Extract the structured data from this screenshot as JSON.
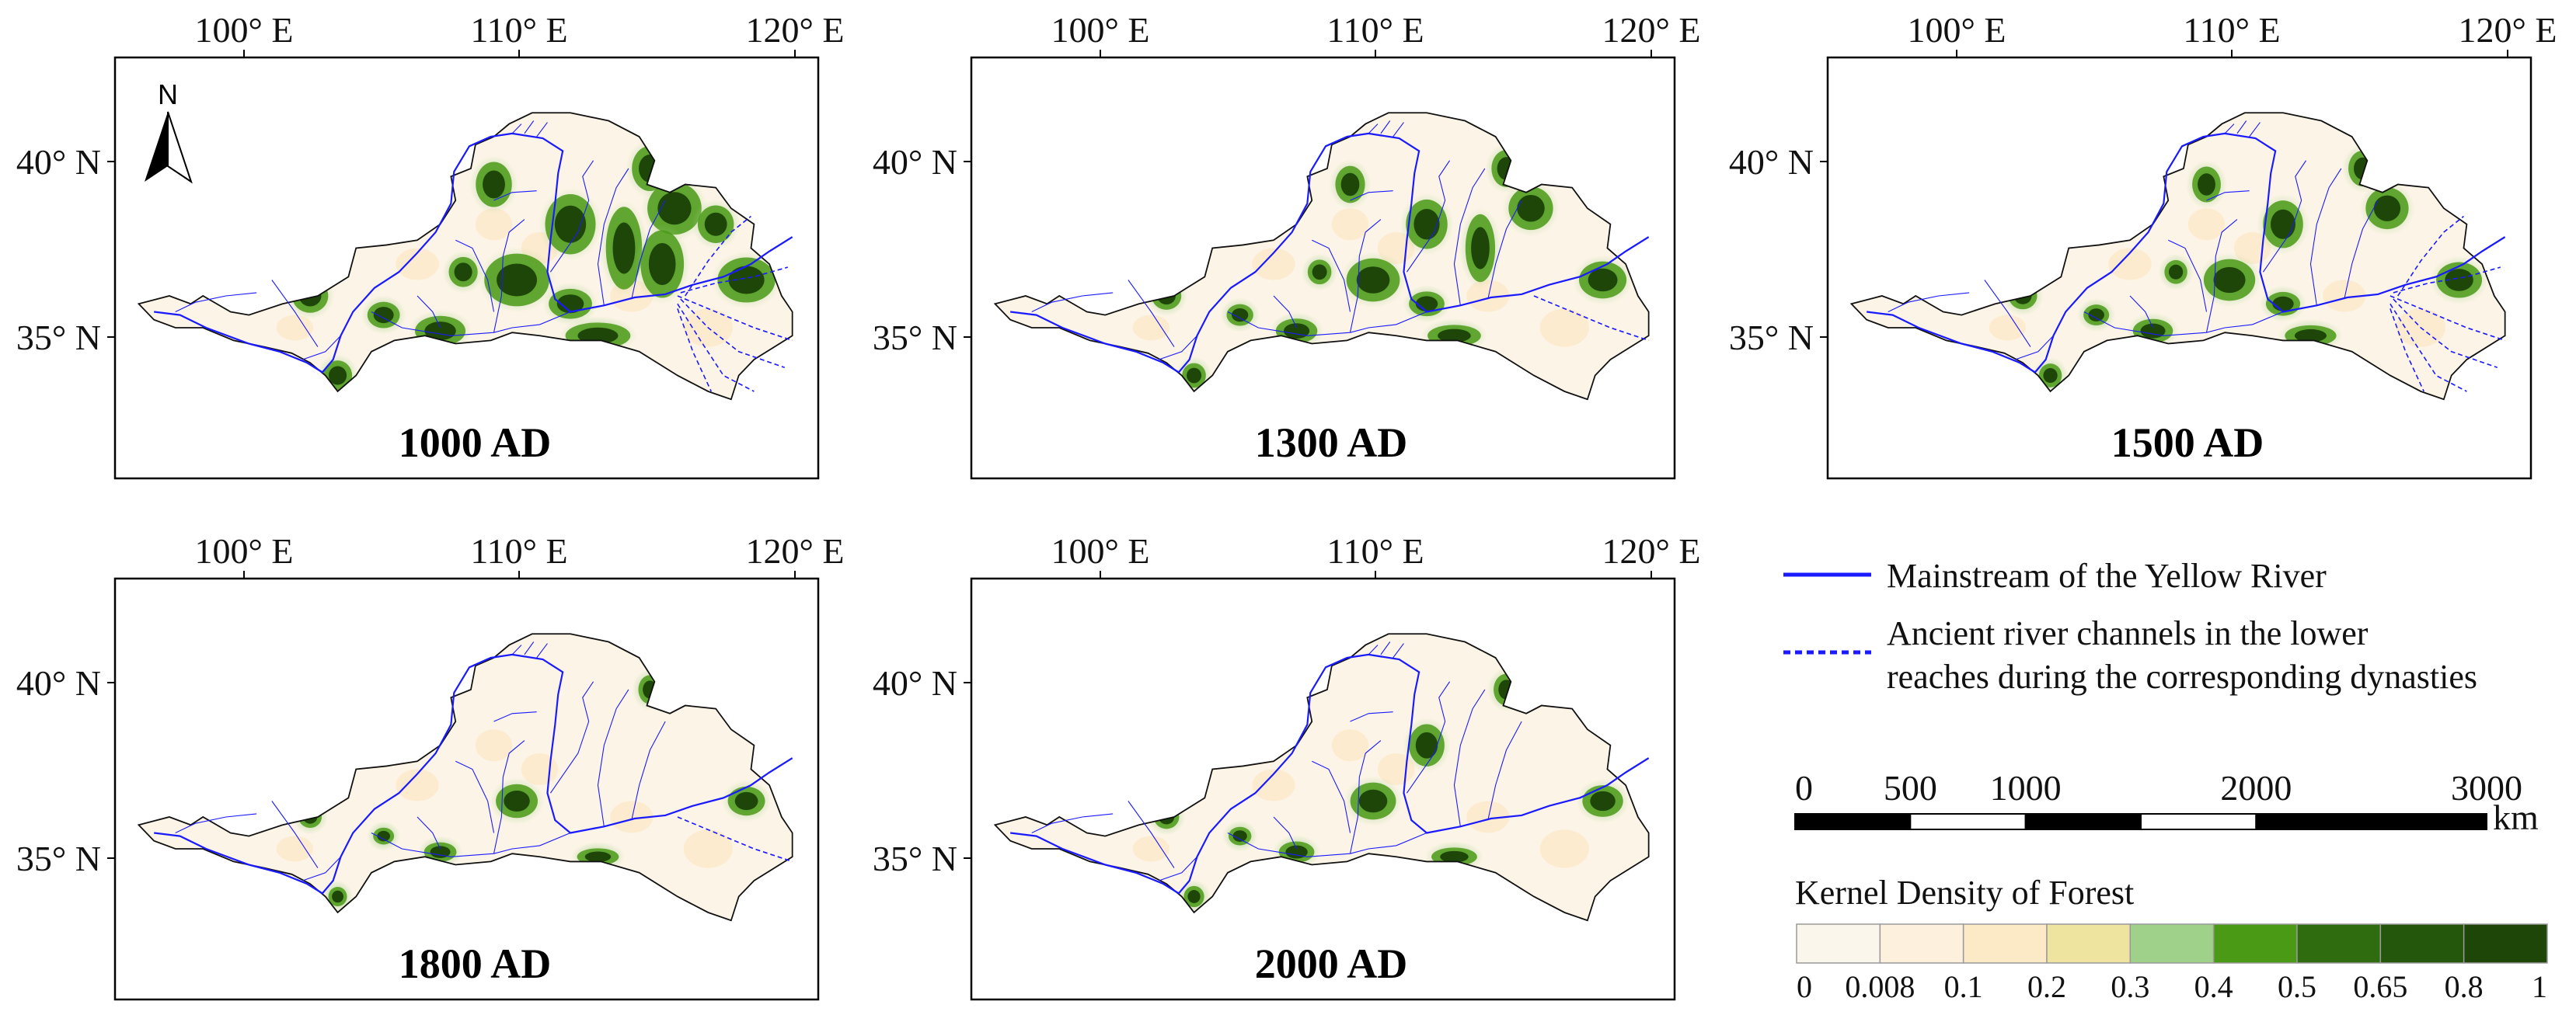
{
  "axes": {
    "lon_ticks": [
      "100° E",
      "110° E",
      "120° E"
    ],
    "lat_ticks": [
      "40° N",
      "35° N"
    ]
  },
  "north_arrow": {
    "label": "N",
    "icon": "north-arrow-icon"
  },
  "panels": [
    {
      "id": "p1000",
      "label": "1000 AD",
      "forest_level": 0.9,
      "ancient_channels": 6,
      "show_north": true
    },
    {
      "id": "p1300",
      "label": "1300 AD",
      "forest_level": 0.6,
      "ancient_channels": 1,
      "show_north": false
    },
    {
      "id": "p1500",
      "label": "1500 AD",
      "forest_level": 0.55,
      "ancient_channels": 6,
      "show_north": false
    },
    {
      "id": "p1800",
      "label": "1800 AD",
      "forest_level": 0.3,
      "ancient_channels": 1,
      "show_north": false
    },
    {
      "id": "p2000",
      "label": "2000 AD",
      "forest_level": 0.4,
      "ancient_channels": 0,
      "show_north": false
    }
  ],
  "legend": {
    "mainstream": "Mainstream of the Yellow River",
    "ancient_line1": "Ancient river channels in the lower",
    "ancient_line2": "reaches during the corresponding dynasties",
    "river_color": "#1a1aff"
  },
  "scale_bar": {
    "labels": [
      "0",
      "500",
      "1000",
      "2000",
      "3000"
    ],
    "unit": "km"
  },
  "colorbar": {
    "title": "Kernel Density of Forest",
    "labels": [
      "0",
      "0.008",
      "0.1",
      "0.2",
      "0.3",
      "0.4",
      "0.5",
      "0.65",
      "0.8",
      "1"
    ],
    "colors": [
      "#fbf6ec",
      "#fdf0dc",
      "#fce9c6",
      "#efe3a0",
      "#9fd18a",
      "#4a9a16",
      "#2e6c0f",
      "#24560b",
      "#1d4608"
    ]
  }
}
